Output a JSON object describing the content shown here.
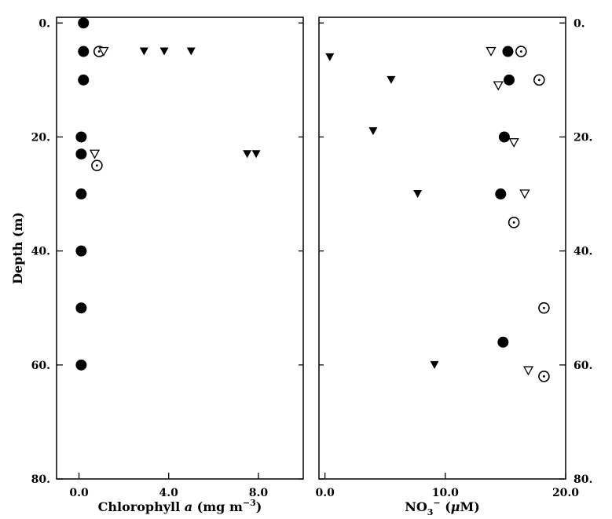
{
  "chart_data": [
    {
      "type": "scatter",
      "panel": "left",
      "xlabel": "Chlorophyll a (mg m⁻³)",
      "ylabel": "Depth (m)",
      "xlim": [
        -1.0,
        10.0
      ],
      "ylim": [
        80,
        -1.0
      ],
      "xticks": [
        0.0,
        4.0,
        8.0
      ],
      "xtick_labels": [
        "0.0",
        "4.0",
        "8.0"
      ],
      "yticks": [
        0,
        20,
        40,
        60,
        80
      ],
      "ytick_labels": [
        "0.",
        "20.",
        "40.",
        "60.",
        "80."
      ],
      "ytick_side": "left",
      "grid": false,
      "series": [
        {
          "marker": "filled-circle",
          "color": "#000000",
          "points": [
            {
              "x": 0.2,
              "y": 0
            },
            {
              "x": 0.2,
              "y": 5
            },
            {
              "x": 0.2,
              "y": 10
            },
            {
              "x": 0.1,
              "y": 20
            },
            {
              "x": 0.1,
              "y": 23
            },
            {
              "x": 0.1,
              "y": 30
            },
            {
              "x": 0.1,
              "y": 40
            },
            {
              "x": 0.1,
              "y": 50
            },
            {
              "x": 0.1,
              "y": 60
            }
          ]
        },
        {
          "marker": "open-circle-dot",
          "color": "#000000",
          "points": [
            {
              "x": 0.9,
              "y": 5
            },
            {
              "x": 0.8,
              "y": 25
            }
          ]
        },
        {
          "marker": "filled-triangle-down",
          "color": "#000000",
          "points": [
            {
              "x": 2.9,
              "y": 5
            },
            {
              "x": 3.8,
              "y": 5
            },
            {
              "x": 5.0,
              "y": 5
            },
            {
              "x": 7.5,
              "y": 23
            },
            {
              "x": 7.9,
              "y": 23
            }
          ]
        },
        {
          "marker": "open-triangle-down",
          "color": "#000000",
          "points": [
            {
              "x": 0.7,
              "y": 23
            },
            {
              "x": 1.1,
              "y": 5
            }
          ]
        }
      ]
    },
    {
      "type": "scatter",
      "panel": "right",
      "xlabel": "NO₃⁻ (μM)",
      "ylabel": "",
      "xlim": [
        -0.5,
        20.0
      ],
      "ylim": [
        80,
        -1.0
      ],
      "xticks": [
        0.0,
        10.0,
        20.0
      ],
      "xtick_labels": [
        "0.0",
        "10.0",
        "20.0"
      ],
      "yticks": [
        0,
        20,
        40,
        60,
        80
      ],
      "ytick_labels": [
        "0.",
        "20.",
        "40.",
        "60.",
        "80."
      ],
      "ytick_side": "right",
      "grid": false,
      "series": [
        {
          "marker": "filled-circle",
          "color": "#000000",
          "points": [
            {
              "x": 15.2,
              "y": 5
            },
            {
              "x": 15.3,
              "y": 10
            },
            {
              "x": 14.9,
              "y": 20
            },
            {
              "x": 14.6,
              "y": 30
            },
            {
              "x": 14.8,
              "y": 56
            }
          ]
        },
        {
          "marker": "open-circle-dot",
          "color": "#000000",
          "points": [
            {
              "x": 16.3,
              "y": 5
            },
            {
              "x": 17.8,
              "y": 10
            },
            {
              "x": 15.7,
              "y": 35
            },
            {
              "x": 18.2,
              "y": 50
            },
            {
              "x": 18.2,
              "y": 62
            }
          ]
        },
        {
          "marker": "filled-triangle-down",
          "color": "#000000",
          "points": [
            {
              "x": 0.4,
              "y": 6
            },
            {
              "x": 5.5,
              "y": 10
            },
            {
              "x": 4.0,
              "y": 19
            },
            {
              "x": 7.7,
              "y": 30
            },
            {
              "x": 9.1,
              "y": 60
            }
          ]
        },
        {
          "marker": "open-triangle-down",
          "color": "#000000",
          "points": [
            {
              "x": 13.8,
              "y": 5
            },
            {
              "x": 14.4,
              "y": 11
            },
            {
              "x": 15.7,
              "y": 21
            },
            {
              "x": 16.6,
              "y": 30
            },
            {
              "x": 16.9,
              "y": 61
            }
          ]
        }
      ]
    }
  ]
}
